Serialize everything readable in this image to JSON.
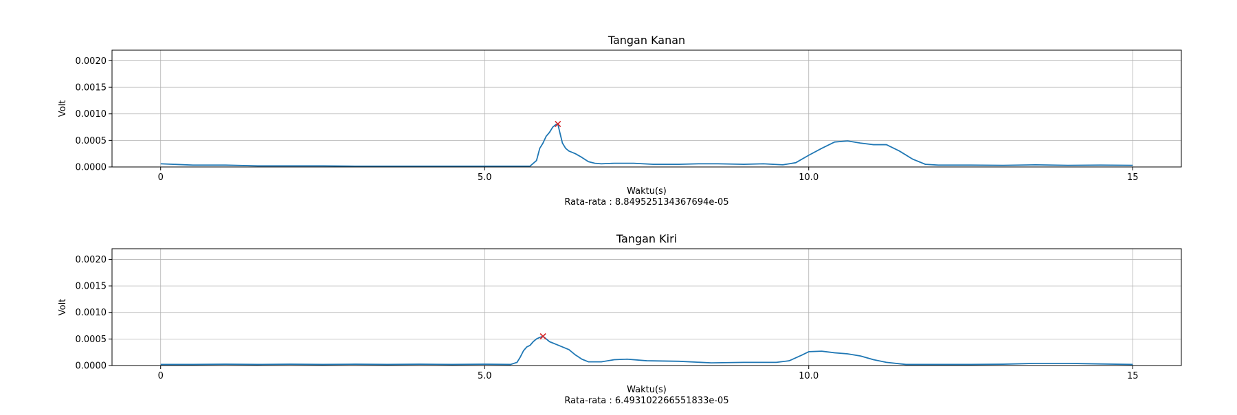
{
  "chart_data": [
    {
      "type": "line",
      "title": "Tangan Kanan",
      "xlabel": "Waktu(s)",
      "ylabel": "Volt",
      "note": "Rata-rata : 8.849525134367694e-05",
      "xlim": [
        -0.75,
        15.75
      ],
      "ylim": [
        0,
        0.0022
      ],
      "x_ticks": [
        0,
        5,
        10,
        15
      ],
      "x_tick_labels": [
        "0",
        "5.0",
        "10.0",
        "15"
      ],
      "y_ticks": [
        0,
        0.0005,
        0.001,
        0.0015,
        0.002
      ],
      "y_tick_labels": [
        "0.0000",
        "0.0005",
        "0.0010",
        "0.0015",
        "0.0020"
      ],
      "grid": true,
      "line_color": "#1f77b4",
      "marker_color": "#d62728",
      "series": [
        {
          "x": [
            0,
            0.5,
            1.0,
            1.5,
            2.0,
            2.5,
            3.0,
            3.5,
            4.0,
            4.5,
            5.0,
            5.5,
            5.7,
            5.8,
            5.85,
            5.9,
            5.95,
            6.0,
            6.05,
            6.1,
            6.13,
            6.15,
            6.2,
            6.25,
            6.3,
            6.4,
            6.5,
            6.6,
            6.7,
            6.8,
            7.0,
            7.3,
            7.6,
            7.8,
            8.0,
            8.3,
            8.6,
            9.0,
            9.3,
            9.6,
            9.8,
            10.0,
            10.2,
            10.4,
            10.6,
            10.8,
            11.0,
            11.2,
            11.4,
            11.6,
            11.8,
            12.0,
            12.5,
            13.0,
            13.5,
            14.0,
            14.5,
            15.0
          ],
          "y": [
            6e-05,
            3.5e-05,
            3.5e-05,
            2e-05,
            2e-05,
            2e-05,
            1.5e-05,
            1.5e-05,
            1.5e-05,
            1.5e-05,
            1.5e-05,
            1.5e-05,
            1.5e-05,
            0.00012,
            0.00035,
            0.00045,
            0.00058,
            0.00065,
            0.00075,
            0.0008,
            0.00081,
            0.0007,
            0.00045,
            0.00035,
            0.0003,
            0.00025,
            0.00018,
            0.0001,
            7e-05,
            6e-05,
            7e-05,
            7e-05,
            5e-05,
            5e-05,
            5e-05,
            6e-05,
            6e-05,
            5e-05,
            6e-05,
            4e-05,
            8e-05,
            0.00022,
            0.00035,
            0.00047,
            0.00049,
            0.00045,
            0.00042,
            0.00042,
            0.0003,
            0.00015,
            5e-05,
            3.5e-05,
            3.5e-05,
            3e-05,
            4e-05,
            3e-05,
            3.5e-05,
            3e-05
          ]
        }
      ],
      "peak": {
        "x": 6.13,
        "y": 0.00081
      }
    },
    {
      "type": "line",
      "title": "Tangan Kiri",
      "xlabel": "Waktu(s)",
      "ylabel": "Volt",
      "note": "Rata-rata : 6.493102266551833e-05",
      "xlim": [
        -0.75,
        15.75
      ],
      "ylim": [
        0,
        0.0022
      ],
      "x_ticks": [
        0,
        5,
        10,
        15
      ],
      "x_tick_labels": [
        "0",
        "5.0",
        "10.0",
        "15"
      ],
      "y_ticks": [
        0,
        0.0005,
        0.001,
        0.0015,
        0.002
      ],
      "y_tick_labels": [
        "0.0000",
        "0.0005",
        "0.0010",
        "0.0015",
        "0.0020"
      ],
      "grid": true,
      "line_color": "#1f77b4",
      "marker_color": "#d62728",
      "series": [
        {
          "x": [
            0,
            0.5,
            1.0,
            1.5,
            2.0,
            2.5,
            3.0,
            3.5,
            4.0,
            4.5,
            5.0,
            5.4,
            5.5,
            5.55,
            5.6,
            5.65,
            5.7,
            5.75,
            5.8,
            5.85,
            5.9,
            6.0,
            6.1,
            6.2,
            6.3,
            6.4,
            6.5,
            6.6,
            6.8,
            7.0,
            7.2,
            7.5,
            8.0,
            8.5,
            9.0,
            9.5,
            9.7,
            9.9,
            10.0,
            10.2,
            10.4,
            10.6,
            10.8,
            11.0,
            11.2,
            11.5,
            12.0,
            12.5,
            13.0,
            13.5,
            14.0,
            14.5,
            15.0
          ],
          "y": [
            2e-05,
            2e-05,
            2.5e-05,
            2e-05,
            2.5e-05,
            2e-05,
            2.5e-05,
            2e-05,
            2.5e-05,
            2e-05,
            2.5e-05,
            2e-05,
            6e-05,
            0.00016,
            0.00028,
            0.00035,
            0.00038,
            0.00045,
            0.0005,
            0.00053,
            0.00055,
            0.00045,
            0.0004,
            0.00035,
            0.0003,
            0.0002,
            0.00012,
            7e-05,
            7e-05,
            0.00011,
            0.00012,
            9e-05,
            8e-05,
            5e-05,
            6e-05,
            6e-05,
            9e-05,
            0.0002,
            0.00026,
            0.00027,
            0.00024,
            0.00022,
            0.00018,
            0.00011,
            6e-05,
            2e-05,
            2e-05,
            2e-05,
            2.5e-05,
            4e-05,
            4e-05,
            3e-05,
            2e-05
          ]
        }
      ],
      "peak": {
        "x": 5.9,
        "y": 0.00055
      }
    }
  ]
}
